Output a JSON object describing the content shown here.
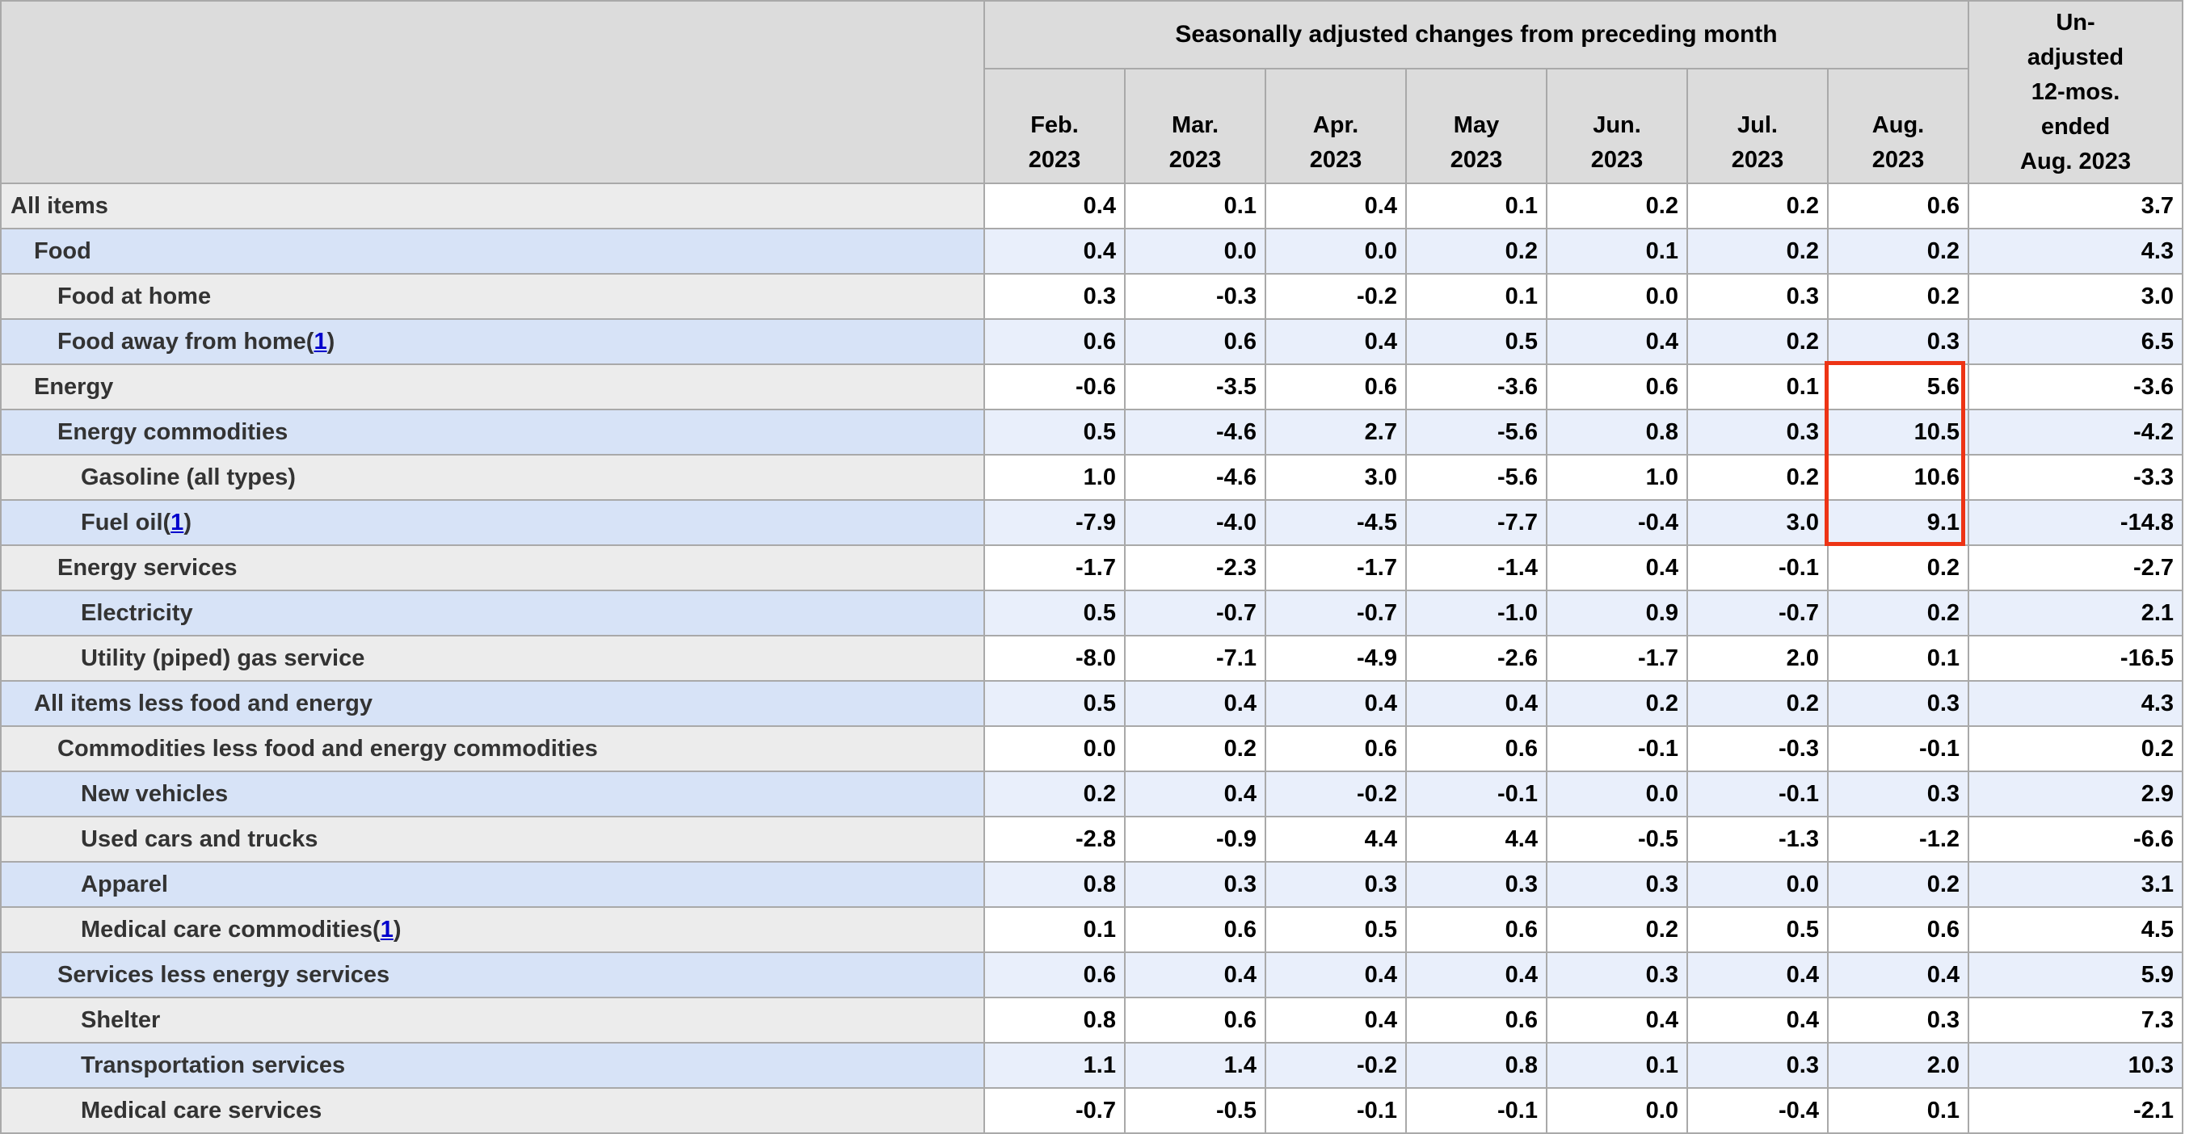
{
  "table": {
    "span_header": "Seasonally adjusted changes from preceding month",
    "unadjusted_header": "Un-\nadjusted\n12-mos.\nended\nAug. 2023",
    "months": [
      "Feb.\n2023",
      "Mar.\n2023",
      "Apr.\n2023",
      "May\n2023",
      "Jun.\n2023",
      "Jul.\n2023",
      "Aug.\n2023"
    ],
    "footnote_symbol": "1",
    "colors": {
      "header_bg": "#dcdcdc",
      "row_gray_label_bg": "#ececec",
      "row_gray_data_bg": "#ffffff",
      "row_blue_label_bg": "#d7e3f7",
      "row_blue_data_bg": "#e9effb",
      "border": "#a9a9a9",
      "label_text": "#333333",
      "value_text": "#000000",
      "footnote_link": "#0000cc",
      "highlight_border": "#ed3415"
    },
    "highlight": {
      "column": "Aug. 2023",
      "row_labels": [
        "Energy",
        "Energy commodities",
        "Gasoline (all types)",
        "Fuel oil"
      ],
      "color": "#ed3415"
    },
    "rows": [
      {
        "label": "All items",
        "level": 0,
        "footnote": false,
        "values": [
          "0.4",
          "0.1",
          "0.4",
          "0.1",
          "0.2",
          "0.2",
          "0.6",
          "3.7"
        ]
      },
      {
        "label": "Food",
        "level": 1,
        "footnote": false,
        "values": [
          "0.4",
          "0.0",
          "0.0",
          "0.2",
          "0.1",
          "0.2",
          "0.2",
          "4.3"
        ]
      },
      {
        "label": "Food at home",
        "level": 2,
        "footnote": false,
        "values": [
          "0.3",
          "-0.3",
          "-0.2",
          "0.1",
          "0.0",
          "0.3",
          "0.2",
          "3.0"
        ]
      },
      {
        "label": "Food away from home",
        "level": 2,
        "footnote": true,
        "values": [
          "0.6",
          "0.6",
          "0.4",
          "0.5",
          "0.4",
          "0.2",
          "0.3",
          "6.5"
        ]
      },
      {
        "label": "Energy",
        "level": 1,
        "footnote": false,
        "values": [
          "-0.6",
          "-3.5",
          "0.6",
          "-3.6",
          "0.6",
          "0.1",
          "5.6",
          "-3.6"
        ]
      },
      {
        "label": "Energy commodities",
        "level": 2,
        "footnote": false,
        "values": [
          "0.5",
          "-4.6",
          "2.7",
          "-5.6",
          "0.8",
          "0.3",
          "10.5",
          "-4.2"
        ]
      },
      {
        "label": "Gasoline (all types)",
        "level": 3,
        "footnote": false,
        "values": [
          "1.0",
          "-4.6",
          "3.0",
          "-5.6",
          "1.0",
          "0.2",
          "10.6",
          "-3.3"
        ]
      },
      {
        "label": "Fuel oil",
        "level": 3,
        "footnote": true,
        "values": [
          "-7.9",
          "-4.0",
          "-4.5",
          "-7.7",
          "-0.4",
          "3.0",
          "9.1",
          "-14.8"
        ]
      },
      {
        "label": "Energy services",
        "level": 2,
        "footnote": false,
        "values": [
          "-1.7",
          "-2.3",
          "-1.7",
          "-1.4",
          "0.4",
          "-0.1",
          "0.2",
          "-2.7"
        ]
      },
      {
        "label": "Electricity",
        "level": 3,
        "footnote": false,
        "values": [
          "0.5",
          "-0.7",
          "-0.7",
          "-1.0",
          "0.9",
          "-0.7",
          "0.2",
          "2.1"
        ]
      },
      {
        "label": "Utility (piped) gas service",
        "level": 3,
        "footnote": false,
        "values": [
          "-8.0",
          "-7.1",
          "-4.9",
          "-2.6",
          "-1.7",
          "2.0",
          "0.1",
          "-16.5"
        ]
      },
      {
        "label": "All items less food and energy",
        "level": 1,
        "footnote": false,
        "values": [
          "0.5",
          "0.4",
          "0.4",
          "0.4",
          "0.2",
          "0.2",
          "0.3",
          "4.3"
        ]
      },
      {
        "label": "Commodities less food and energy commodities",
        "level": 2,
        "footnote": false,
        "values": [
          "0.0",
          "0.2",
          "0.6",
          "0.6",
          "-0.1",
          "-0.3",
          "-0.1",
          "0.2"
        ]
      },
      {
        "label": "New vehicles",
        "level": 3,
        "footnote": false,
        "values": [
          "0.2",
          "0.4",
          "-0.2",
          "-0.1",
          "0.0",
          "-0.1",
          "0.3",
          "2.9"
        ]
      },
      {
        "label": "Used cars and trucks",
        "level": 3,
        "footnote": false,
        "values": [
          "-2.8",
          "-0.9",
          "4.4",
          "4.4",
          "-0.5",
          "-1.3",
          "-1.2",
          "-6.6"
        ]
      },
      {
        "label": "Apparel",
        "level": 3,
        "footnote": false,
        "values": [
          "0.8",
          "0.3",
          "0.3",
          "0.3",
          "0.3",
          "0.0",
          "0.2",
          "3.1"
        ]
      },
      {
        "label": "Medical care commodities",
        "level": 3,
        "footnote": true,
        "values": [
          "0.1",
          "0.6",
          "0.5",
          "0.6",
          "0.2",
          "0.5",
          "0.6",
          "4.5"
        ]
      },
      {
        "label": "Services less energy services",
        "level": 2,
        "footnote": false,
        "values": [
          "0.6",
          "0.4",
          "0.4",
          "0.4",
          "0.3",
          "0.4",
          "0.4",
          "5.9"
        ]
      },
      {
        "label": "Shelter",
        "level": 3,
        "footnote": false,
        "values": [
          "0.8",
          "0.6",
          "0.4",
          "0.6",
          "0.4",
          "0.4",
          "0.3",
          "7.3"
        ]
      },
      {
        "label": "Transportation services",
        "level": 3,
        "footnote": false,
        "values": [
          "1.1",
          "1.4",
          "-0.2",
          "0.8",
          "0.1",
          "0.3",
          "2.0",
          "10.3"
        ]
      },
      {
        "label": "Medical care services",
        "level": 3,
        "footnote": false,
        "values": [
          "-0.7",
          "-0.5",
          "-0.1",
          "-0.1",
          "0.0",
          "-0.4",
          "0.1",
          "-2.1"
        ]
      }
    ]
  }
}
